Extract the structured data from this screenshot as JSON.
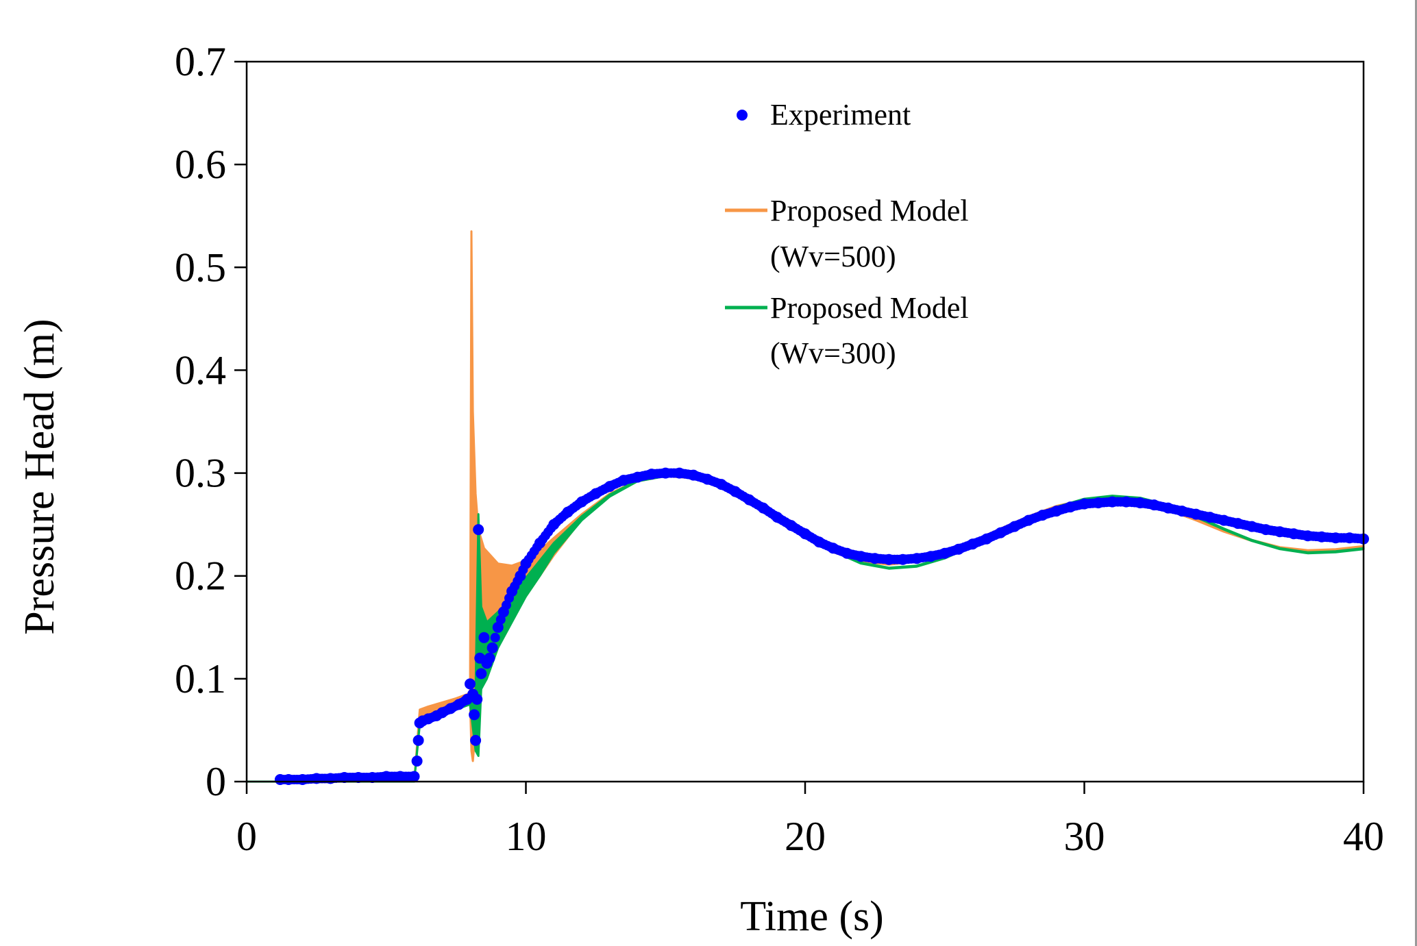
{
  "chart_data": {
    "type": "line",
    "xlabel": "Time (s)",
    "ylabel": "Pressure Head (m)",
    "xlim": [
      0,
      40
    ],
    "ylim": [
      0,
      0.7
    ],
    "xticks": [
      0,
      10,
      20,
      30,
      40
    ],
    "xtick_labels": [
      "0",
      "10",
      "20",
      "30",
      "40"
    ],
    "yticks": [
      0,
      0.1,
      0.2,
      0.3,
      0.4,
      0.5,
      0.6,
      0.7
    ],
    "ytick_labels": [
      "0",
      "0.1",
      "0.2",
      "0.3",
      "0.4",
      "0.5",
      "0.6",
      "0.7"
    ],
    "legend_position": "top-center",
    "series": [
      {
        "name": "Experiment",
        "kind": "scatter",
        "color": "#0000ff",
        "x": [
          1.2,
          1.5,
          2.0,
          2.5,
          3.0,
          3.5,
          4.0,
          4.5,
          5.0,
          5.5,
          6.0,
          6.1,
          6.15,
          6.2,
          6.3,
          6.5,
          6.8,
          7.0,
          7.3,
          7.6,
          7.9,
          8.0,
          8.1,
          8.15,
          8.2,
          8.25,
          8.3,
          8.35,
          8.4,
          8.5,
          8.6,
          8.7,
          8.8,
          9.0,
          9.2,
          9.5,
          9.8,
          10.0,
          10.5,
          11.0,
          11.5,
          12.0,
          12.5,
          13.0,
          13.5,
          14.0,
          14.5,
          15.0,
          15.5,
          16.0,
          16.5,
          17.0,
          17.5,
          18.0,
          18.5,
          19.0,
          19.5,
          20.0,
          20.5,
          21.0,
          21.5,
          22.0,
          22.5,
          23.0,
          23.5,
          24.0,
          24.5,
          25.0,
          25.5,
          26.0,
          26.5,
          27.0,
          27.5,
          28.0,
          28.5,
          29.0,
          29.5,
          30.0,
          30.5,
          31.0,
          31.5,
          32.0,
          32.5,
          33.0,
          33.5,
          34.0,
          34.5,
          35.0,
          35.5,
          36.0,
          36.5,
          37.0,
          37.5,
          38.0,
          38.5,
          39.0,
          39.5,
          40.0
        ],
        "values": [
          0.002,
          0.002,
          0.002,
          0.003,
          0.003,
          0.004,
          0.004,
          0.004,
          0.005,
          0.005,
          0.005,
          0.02,
          0.04,
          0.057,
          0.059,
          0.061,
          0.064,
          0.067,
          0.071,
          0.075,
          0.08,
          0.095,
          0.085,
          0.065,
          0.04,
          0.08,
          0.245,
          0.12,
          0.105,
          0.14,
          0.115,
          0.12,
          0.13,
          0.15,
          0.165,
          0.185,
          0.2,
          0.212,
          0.232,
          0.25,
          0.262,
          0.272,
          0.28,
          0.287,
          0.293,
          0.296,
          0.299,
          0.3,
          0.3,
          0.298,
          0.294,
          0.289,
          0.282,
          0.274,
          0.266,
          0.257,
          0.249,
          0.241,
          0.233,
          0.227,
          0.222,
          0.219,
          0.217,
          0.216,
          0.216,
          0.217,
          0.219,
          0.222,
          0.226,
          0.231,
          0.236,
          0.242,
          0.248,
          0.254,
          0.259,
          0.263,
          0.267,
          0.27,
          0.271,
          0.272,
          0.272,
          0.271,
          0.269,
          0.266,
          0.263,
          0.26,
          0.257,
          0.254,
          0.251,
          0.248,
          0.245,
          0.243,
          0.241,
          0.239,
          0.238,
          0.237,
          0.237,
          0.236
        ]
      },
      {
        "name": "Proposed Model (Wv=500)",
        "kind": "line",
        "color": "#f79646",
        "x": [
          0,
          6.0,
          6.2,
          6.5,
          7.0,
          7.5,
          8.0,
          8.05,
          8.1,
          8.2,
          8.3,
          8.5,
          9.0,
          9.5,
          10.0,
          10.5,
          11.0,
          12.0,
          13.0,
          14.0,
          15.0,
          16.0,
          17.0,
          18.0,
          19.0,
          20.0,
          21.0,
          22.0,
          23.0,
          24.0,
          25.0,
          26.0,
          27.0,
          28.0,
          29.0,
          30.0,
          31.0,
          32.0,
          33.0,
          34.0,
          35.0,
          36.0,
          37.0,
          38.0,
          39.0,
          40.0
        ],
        "upper": [
          0,
          0,
          0.07,
          0.073,
          0.077,
          0.081,
          0.086,
          0.535,
          0.36,
          0.28,
          0.245,
          0.227,
          0.212,
          0.21,
          0.215,
          0.225,
          0.237,
          0.26,
          0.28,
          0.293,
          0.298,
          0.296,
          0.287,
          0.272,
          0.255,
          0.238,
          0.224,
          0.215,
          0.212,
          0.215,
          0.223,
          0.234,
          0.246,
          0.258,
          0.268,
          0.274,
          0.275,
          0.272,
          0.265,
          0.255,
          0.244,
          0.235,
          0.228,
          0.225,
          0.226,
          0.229
        ],
        "lower": [
          0,
          0,
          0.06,
          0.066,
          0.071,
          0.075,
          0.08,
          0.03,
          0.02,
          0.05,
          0.07,
          0.11,
          0.14,
          0.16,
          0.18,
          0.2,
          0.22,
          0.255,
          0.278,
          0.292,
          0.297,
          0.295,
          0.286,
          0.271,
          0.254,
          0.237,
          0.223,
          0.214,
          0.211,
          0.214,
          0.222,
          0.233,
          0.245,
          0.257,
          0.267,
          0.273,
          0.274,
          0.271,
          0.264,
          0.254,
          0.243,
          0.234,
          0.227,
          0.224,
          0.225,
          0.228
        ]
      },
      {
        "name": "Proposed Model (Wv=300)",
        "kind": "line",
        "color": "#00b050",
        "x": [
          0,
          6.0,
          6.2,
          6.5,
          7.0,
          7.5,
          8.0,
          8.2,
          8.3,
          8.4,
          8.6,
          9.0,
          9.5,
          10.0,
          10.5,
          11.0,
          12.0,
          13.0,
          14.0,
          15.0,
          16.0,
          17.0,
          18.0,
          19.0,
          20.0,
          21.0,
          22.0,
          23.0,
          24.0,
          25.0,
          26.0,
          27.0,
          28.0,
          29.0,
          30.0,
          31.0,
          32.0,
          33.0,
          34.0,
          35.0,
          36.0,
          37.0,
          38.0,
          39.0,
          40.0
        ],
        "upper": [
          0,
          0,
          0.058,
          0.062,
          0.067,
          0.072,
          0.078,
          0.09,
          0.26,
          0.17,
          0.155,
          0.165,
          0.18,
          0.198,
          0.215,
          0.232,
          0.258,
          0.279,
          0.293,
          0.298,
          0.297,
          0.289,
          0.275,
          0.258,
          0.241,
          0.225,
          0.213,
          0.208,
          0.21,
          0.218,
          0.23,
          0.243,
          0.256,
          0.267,
          0.275,
          0.278,
          0.276,
          0.269,
          0.258,
          0.246,
          0.235,
          0.227,
          0.223,
          0.224,
          0.227
        ],
        "lower": [
          0,
          0,
          0.055,
          0.06,
          0.065,
          0.07,
          0.075,
          0.03,
          0.025,
          0.09,
          0.1,
          0.13,
          0.155,
          0.18,
          0.2,
          0.222,
          0.254,
          0.277,
          0.292,
          0.297,
          0.296,
          0.288,
          0.274,
          0.257,
          0.24,
          0.224,
          0.212,
          0.207,
          0.209,
          0.217,
          0.229,
          0.242,
          0.255,
          0.266,
          0.274,
          0.277,
          0.275,
          0.268,
          0.257,
          0.245,
          0.234,
          0.226,
          0.222,
          0.223,
          0.226
        ]
      }
    ],
    "legend": [
      {
        "label": "Experiment",
        "marker": "dot",
        "color": "#0000ff"
      },
      {
        "label": "Proposed Model",
        "label2": "(Wv=500)",
        "marker": "line",
        "color": "#f79646"
      },
      {
        "label": "Proposed Model",
        "label2": "(Wv=300)",
        "marker": "line",
        "color": "#00b050"
      }
    ]
  }
}
